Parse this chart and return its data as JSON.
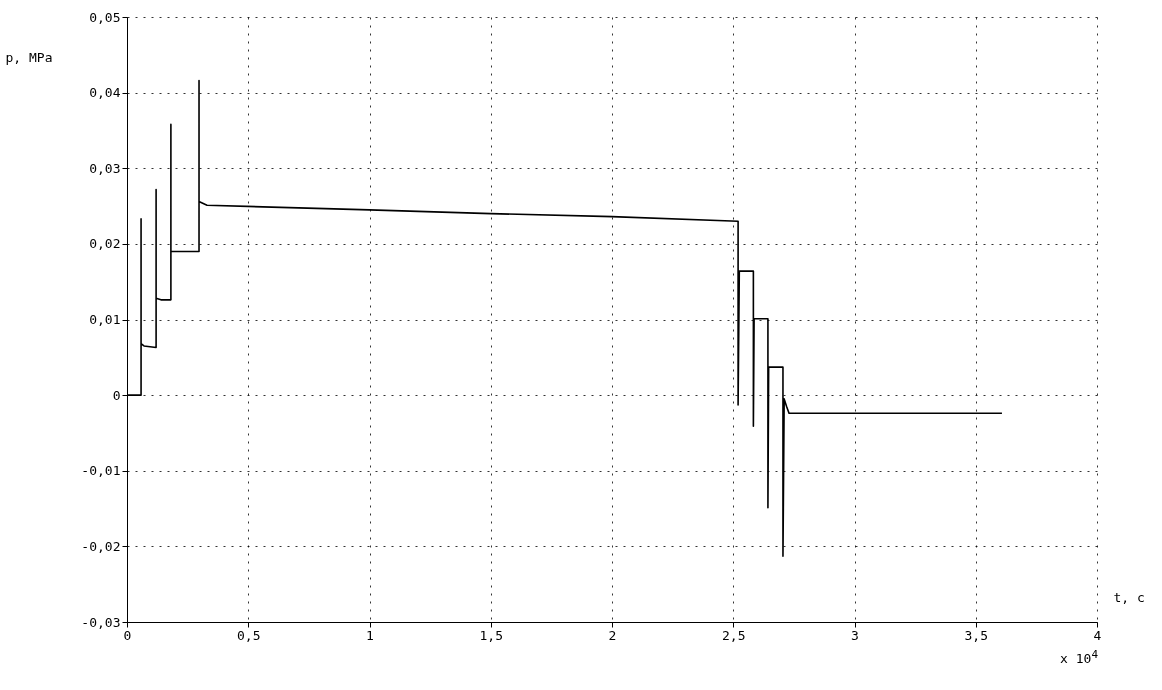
{
  "chart_data": {
    "type": "line",
    "xlabel": "t, c",
    "ylabel": "p, MPa",
    "annotations": [
      "x 10$^{4}$"
    ],
    "series": [
      {
        "color": "#000000",
        "x": [
          0,
          0.058,
          0.058,
          0.058,
          0.07,
          0.12,
          0.12,
          0.12,
          0.14,
          0.181,
          0.181,
          0.181,
          0.297,
          0.297,
          0.297,
          0.31,
          0.33,
          1.0,
          1.5,
          2.0,
          2.52,
          2.52,
          2.525,
          2.583,
          2.583,
          2.586,
          2.643,
          2.643,
          2.646,
          2.705,
          2.705,
          2.71,
          2.72,
          2.73,
          3.608
        ],
        "values": [
          0,
          0,
          0.0233,
          0.0068,
          0.0065,
          0.0063,
          0.0272,
          0.0128,
          0.0126,
          0.0126,
          0.0358,
          0.019,
          0.019,
          0.0416,
          0.0256,
          0.0254,
          0.0251,
          0.0245,
          0.024,
          0.0236,
          0.023,
          -0.0013,
          0.0164,
          0.0164,
          -0.0041,
          0.0101,
          0.0101,
          -0.0149,
          0.0037,
          0.0037,
          -0.0213,
          -0.0005,
          -0.0015,
          -0.0024,
          -0.0024
        ]
      }
    ],
    "xlim": [
      0,
      4
    ],
    "xticks": [
      0,
      {
        "value": 0.5,
        "label": "0,5"
      },
      1,
      {
        "value": 1.5,
        "label": "1,5"
      },
      2,
      {
        "value": 2.5,
        "label": "2,5"
      },
      3,
      {
        "value": 3.5,
        "label": "3,5"
      },
      4
    ],
    "ylim": [
      -0.03,
      0.05
    ],
    "yticks": [
      {
        "value": -0.03,
        "label": "-0,03"
      },
      {
        "value": -0.02,
        "label": "-0,02"
      },
      {
        "value": -0.01,
        "label": "-0,01"
      },
      0,
      {
        "value": 0.01,
        "label": "0,01"
      },
      {
        "value": 0.02,
        "label": "0,02"
      },
      {
        "value": 0.03,
        "label": "0,03"
      },
      {
        "value": 0.04,
        "label": "0,04"
      },
      {
        "value": 0.05,
        "label": "0,05"
      }
    ],
    "grid": true,
    "line_style": "solid"
  }
}
